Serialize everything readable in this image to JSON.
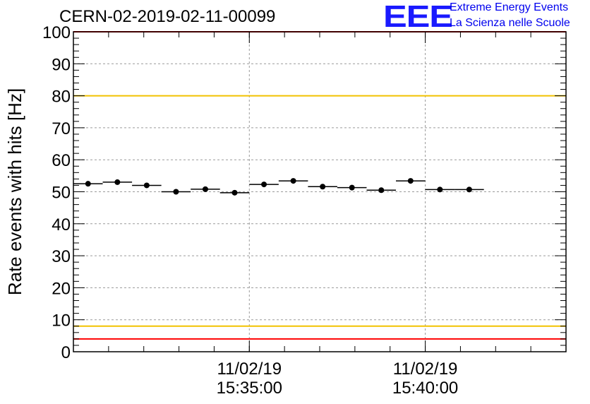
{
  "header": {
    "title": "CERN-02-2019-02-11-00099",
    "logo_text": "EEE",
    "logo_line1": "Extreme Energy Events",
    "logo_line2": "La Scienza nelle Scuole"
  },
  "colors": {
    "red_line": "#ff0000",
    "yellow_line": "#f2c200",
    "logo_blue": "#1a1aff",
    "grid": "#9a9a9a",
    "marker": "#000000"
  },
  "chart_data": {
    "type": "scatter",
    "ylabel": "Rate events with hits [Hz]",
    "xlabel": "",
    "ylim": [
      0,
      100
    ],
    "yticks": [
      0,
      10,
      20,
      30,
      40,
      50,
      60,
      70,
      80,
      90,
      100
    ],
    "xlim": [
      "15:30:00",
      "15:44:00"
    ],
    "x_major_ticks": [
      {
        "time": "15:35:00",
        "label_date": "11/02/19",
        "label_time": "15:35:00"
      },
      {
        "time": "15:40:00",
        "label_date": "11/02/19",
        "label_time": "15:40:00"
      }
    ],
    "grid": true,
    "bin_width_seconds": 50,
    "points": [
      {
        "x": "15:30:25",
        "y": 52.5
      },
      {
        "x": "15:31:15",
        "y": 53.0
      },
      {
        "x": "15:32:05",
        "y": 52.0
      },
      {
        "x": "15:32:55",
        "y": 50.0
      },
      {
        "x": "15:33:45",
        "y": 50.8
      },
      {
        "x": "15:34:35",
        "y": 49.7
      },
      {
        "x": "15:35:25",
        "y": 52.3
      },
      {
        "x": "15:36:15",
        "y": 53.4
      },
      {
        "x": "15:37:05",
        "y": 51.6
      },
      {
        "x": "15:37:55",
        "y": 51.3
      },
      {
        "x": "15:38:45",
        "y": 50.5
      },
      {
        "x": "15:39:35",
        "y": 53.4
      },
      {
        "x": "15:40:25",
        "y": 50.7
      },
      {
        "x": "15:41:15",
        "y": 50.7
      }
    ],
    "reference_lines": [
      {
        "y": 100,
        "color": "#ff0000"
      },
      {
        "y": 80,
        "color": "#f2c200"
      },
      {
        "y": 8,
        "color": "#f2c200"
      },
      {
        "y": 4,
        "color": "#ff0000"
      }
    ]
  }
}
